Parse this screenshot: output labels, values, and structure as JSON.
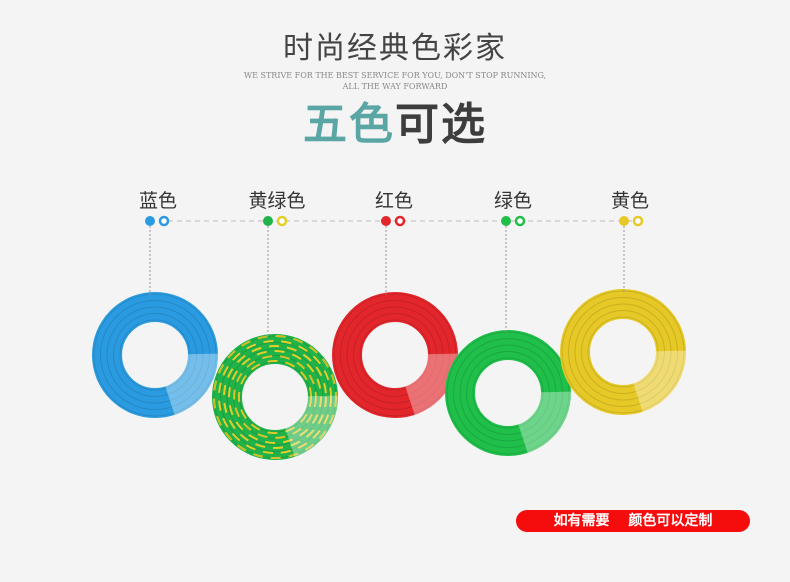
{
  "title": "时尚经典色彩家",
  "subtitle_line1": "WE STRIVE FOR THE BEST SERVICE FOR YOU, DON'T STOP RUNNING,",
  "subtitle_line2": "ALL THE WAY FORWARD",
  "headline_part1": "五色",
  "headline_part2": "可选",
  "colors": [
    {
      "label": "蓝色",
      "hex": "#2a9be0"
    },
    {
      "label": "黄绿色",
      "hex": "#1fb34a",
      "hex2": "#e2cf2a"
    },
    {
      "label": "红色",
      "hex": "#e2262b"
    },
    {
      "label": "绿色",
      "hex": "#1fbf4a"
    },
    {
      "label": "黄色",
      "hex": "#e6c826"
    }
  ],
  "cta": "如有需要 颜色可以定制",
  "cta_color": "#f50d0d"
}
